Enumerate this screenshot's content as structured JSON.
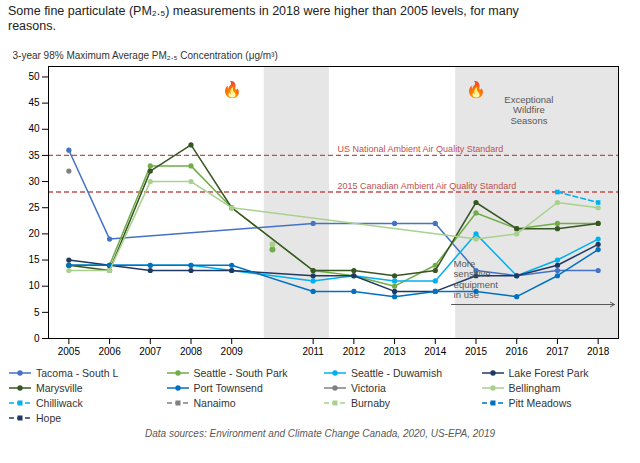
{
  "chart_data": {
    "type": "line",
    "title": "Some fine particulate (PM₂.₅) measurements in 2018 were higher than 2005 levels, for many\nreasons.",
    "ylabel": "3-year 98% Maximum Average PM₂.₅ Concentration (μg/m³)",
    "caption": "Data sources: Environment and Climate Change Canada, 2020, US-EPA, 2019",
    "xlim": [
      2004.5,
      2018.5
    ],
    "xticks": [
      2005,
      2006,
      2007,
      2008,
      2009,
      2011,
      2012,
      2013,
      2014,
      2015,
      2016,
      2017,
      2018
    ],
    "ylim": [
      0,
      52
    ],
    "yticks": [
      0,
      5,
      10,
      15,
      20,
      25,
      30,
      35,
      40,
      45,
      50
    ],
    "grid": false,
    "legend": "bottom",
    "series": [
      {
        "name": "Tacoma - South L",
        "color": "#4472C4",
        "line_style": "solid",
        "marker": "circle",
        "x": [
          2005,
          2006,
          2011,
          2013,
          2014,
          2015,
          2016,
          2017,
          2018
        ],
        "values": [
          36,
          19,
          22,
          22,
          22,
          13,
          12,
          13,
          13
        ]
      },
      {
        "name": "Seattle - South Park",
        "color": "#70AD47",
        "line_style": "solid",
        "marker": "circle",
        "x": [
          2005,
          2006,
          2007,
          2008,
          2009,
          2011,
          2012,
          2013,
          2014,
          2015,
          2016,
          2017,
          2018
        ],
        "values": [
          14,
          14,
          33,
          33,
          25,
          13,
          12,
          10,
          14,
          24,
          21,
          22,
          22
        ]
      },
      {
        "name": "Seattle - Duwamish",
        "color": "#00B0F0",
        "line_style": "solid",
        "marker": "circle",
        "x": [
          2005,
          2006,
          2007,
          2008,
          2009,
          2011,
          2012,
          2013,
          2014,
          2015,
          2016,
          2017,
          2018
        ],
        "values": [
          14,
          14,
          14,
          14,
          13,
          11,
          12,
          11,
          11,
          20,
          12,
          15,
          19
        ]
      },
      {
        "name": "Lake Forest Park",
        "color": "#1F3864",
        "line_style": "solid",
        "marker": "circle",
        "x": [
          2005,
          2006,
          2007,
          2008,
          2009,
          2011,
          2012,
          2013,
          2014,
          2015,
          2016,
          2017,
          2018
        ],
        "values": [
          15,
          14,
          13,
          13,
          13,
          12,
          12,
          9,
          9,
          12,
          12,
          14,
          18
        ]
      },
      {
        "name": "Marysville",
        "color": "#375623",
        "line_style": "solid",
        "marker": "circle",
        "x": [
          2005,
          2006,
          2007,
          2008,
          2009,
          2011,
          2012,
          2013,
          2014,
          2015,
          2016,
          2017,
          2018
        ],
        "values": [
          14,
          13,
          32,
          37,
          25,
          13,
          13,
          12,
          13,
          26,
          21,
          21,
          22
        ]
      },
      {
        "name": "Port Townsend",
        "color": "#0070C0",
        "line_style": "solid",
        "marker": "circle",
        "x": [
          2005,
          2006,
          2007,
          2008,
          2009,
          2011,
          2012,
          2013,
          2014,
          2015,
          2016,
          2017,
          2018
        ],
        "values": [
          14,
          14,
          14,
          14,
          14,
          9,
          9,
          8,
          9,
          9,
          8,
          12,
          17
        ]
      },
      {
        "name": "Victoria",
        "color": "#808080",
        "line_style": "solid",
        "marker": "circle",
        "x": [
          2005
        ],
        "values": [
          32
        ]
      },
      {
        "name": "Bellingham",
        "color": "#A9D18E",
        "line_style": "solid",
        "marker": "circle",
        "x": [
          2005,
          2006,
          2007,
          2008,
          2009,
          2015,
          2016,
          2017,
          2018
        ],
        "values": [
          13,
          13,
          30,
          30,
          25,
          19,
          20,
          26,
          25
        ]
      },
      {
        "name": "Chilliwack",
        "color": "#00B0F0",
        "line_style": "dashed",
        "marker": "square",
        "x": [
          2017,
          2018
        ],
        "values": [
          28,
          26
        ]
      },
      {
        "name": "Nanaimo",
        "color": "#808080",
        "line_style": "dashed",
        "marker": "square",
        "x": [],
        "values": []
      },
      {
        "name": "Burnaby",
        "color": "#A9D18E",
        "line_style": "dashed",
        "marker": "square",
        "x": [],
        "values": []
      },
      {
        "name": "Pitt Meadows",
        "color": "#0070C0",
        "line_style": "dashed",
        "marker": "square",
        "x": [],
        "values": []
      },
      {
        "name": "Hope",
        "color": "#1F3864",
        "line_style": "dashed",
        "marker": "square",
        "x": [],
        "values": []
      }
    ],
    "points": [
      {
        "x": 2010,
        "y": 17,
        "color": "#70AD47"
      },
      {
        "x": 2010,
        "y": 18,
        "color": "#A9D18E"
      }
    ],
    "reference_lines": [
      {
        "y": 35,
        "label": "US National Ambient Air Quality Standard",
        "label_x": 2011.6,
        "color": "#C0504D",
        "line_style": "dashed"
      },
      {
        "y": 28,
        "label": "2015 Canadian Ambient Air Quality Standard",
        "label_x": 2011.6,
        "color": "#C0504D",
        "line_style": "dashed"
      }
    ],
    "shaded_regions": [
      {
        "x1": 2009.8,
        "x2": 2011.4,
        "color": "#DCDCDC"
      },
      {
        "x1": 2014.5,
        "x2": 2018.5,
        "color": "#DCDCDC"
      }
    ],
    "annotations": [
      {
        "text": "🔥",
        "x": 2009,
        "y": 49
      },
      {
        "text": "🔥",
        "x": 2015,
        "y": 49
      },
      {
        "text": "Exceptional\nWildfire\nSeasons",
        "x": 2016.3,
        "y": 46.5,
        "color": "#595959"
      },
      {
        "text": "More\nsensitive\nequipment\nin use",
        "x": 2014.45,
        "y": 7.7,
        "color": "#595959"
      }
    ],
    "arrows": [
      {
        "x1": 2014.4,
        "x2": 2018.4,
        "y": 6.5,
        "color": "#595959"
      }
    ]
  }
}
